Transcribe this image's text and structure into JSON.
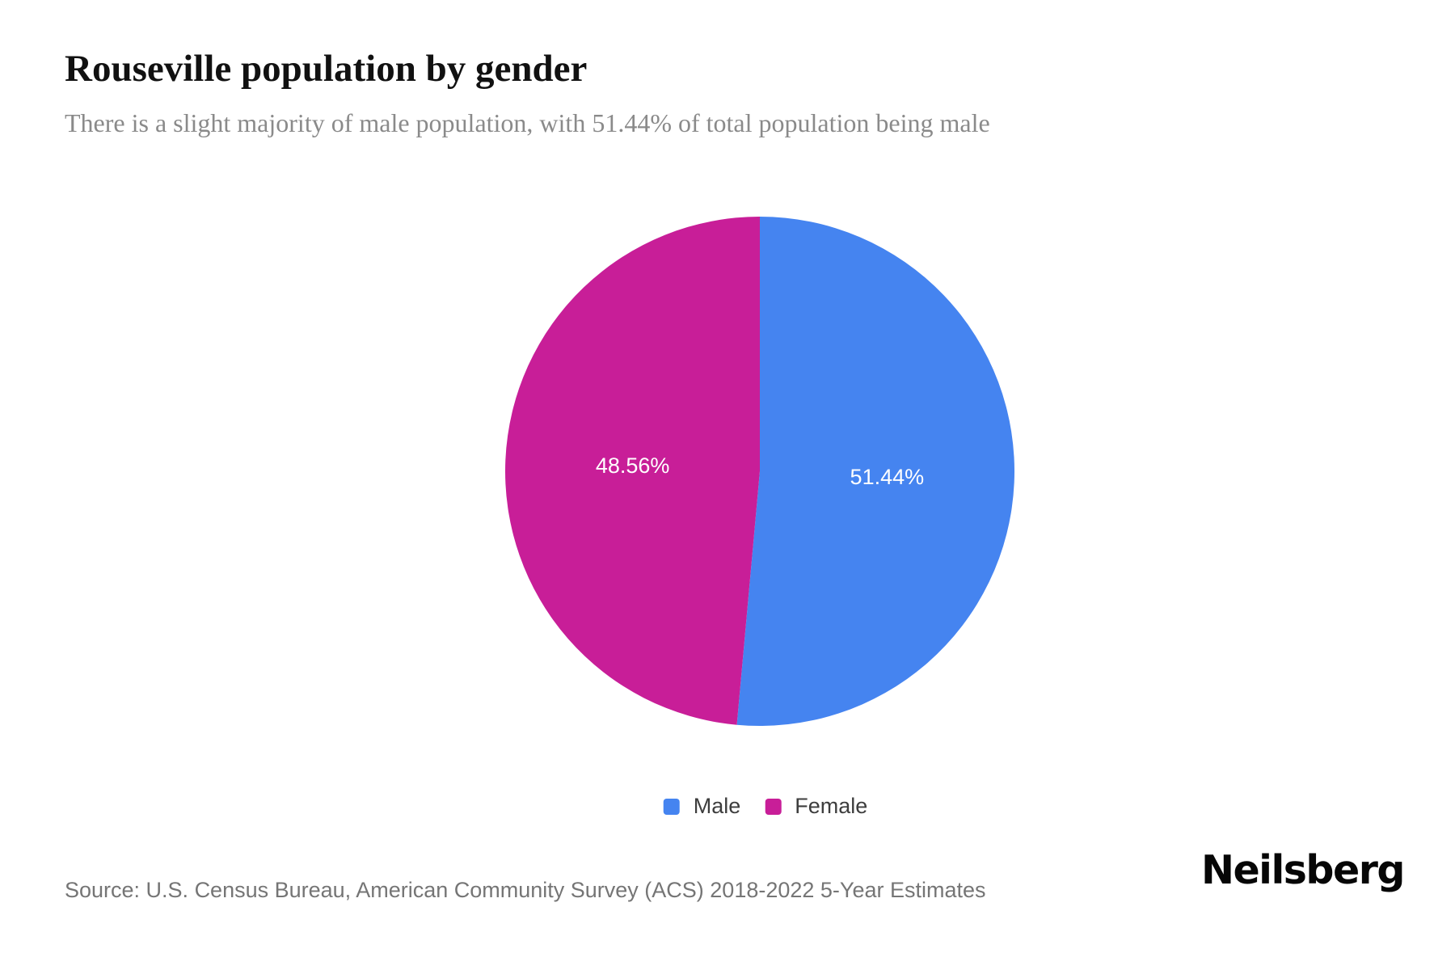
{
  "page": {
    "title": "Rouseville population by gender",
    "subtitle": "There is a slight majority of male population, with 51.44% of total population being male",
    "source_text": "Source: U.S. Census Bureau, American Community Survey (ACS) 2018-2022 5-Year Estimates",
    "brand_logo_text": "Neilsberg",
    "background_color": "#ffffff"
  },
  "chart_data": {
    "type": "pie",
    "title": "Rouseville population by gender",
    "categories": [
      "Male",
      "Female"
    ],
    "values": [
      51.44,
      48.56
    ],
    "slice_labels": [
      "51.44%",
      "48.56%"
    ],
    "colors": [
      "#4584F0",
      "#C81E98"
    ],
    "start_angle_deg": 0,
    "direction": "clockwise",
    "slice_label_color": "#ffffff",
    "slice_label_radius_fraction": 0.5,
    "legend": {
      "position": "bottom",
      "entries": [
        "Male",
        "Female"
      ]
    }
  }
}
